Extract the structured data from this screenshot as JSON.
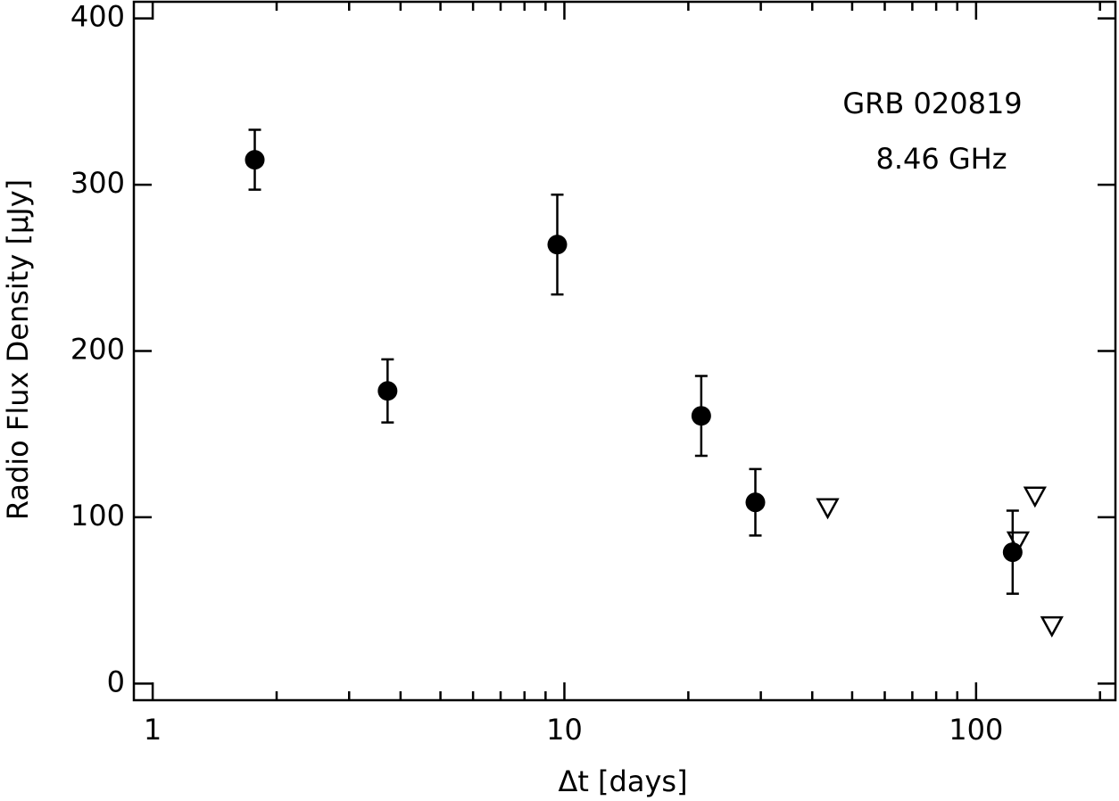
{
  "chart_data": {
    "type": "scatter",
    "annotations": [
      "GRB 020819",
      "8.46 GHz"
    ],
    "x_label": "Δt [days]",
    "y_label": "Radio Flux Density [μJy]",
    "xscale": "log",
    "xlim": [
      0.9,
      218
    ],
    "ylim": [
      -10,
      410
    ],
    "xticks": [
      1,
      10,
      100
    ],
    "xminor_ticks": [
      2,
      3,
      4,
      5,
      6,
      7,
      8,
      9,
      20,
      30,
      40,
      50,
      60,
      70,
      80,
      90,
      200
    ],
    "yticks": [
      0,
      100,
      200,
      300,
      400
    ],
    "series": [
      {
        "marker": "circle",
        "color": "#000000",
        "x": [
          1.77,
          3.72,
          9.61,
          21.5,
          29.1,
          122.7
        ],
        "values": [
          315,
          176,
          264,
          161,
          109,
          79
        ],
        "errors": [
          18,
          19,
          30,
          24,
          20,
          25
        ]
      },
      {
        "marker": "triangle-down",
        "color": "#000000",
        "x": [
          43.6,
          126.5,
          139,
          152.8
        ],
        "values": [
          106,
          86,
          113,
          35
        ]
      }
    ]
  }
}
